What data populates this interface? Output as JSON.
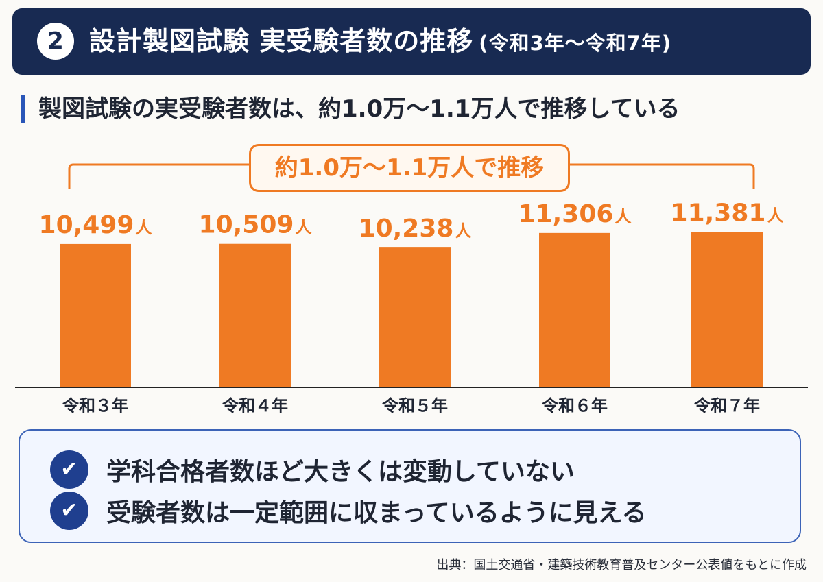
{
  "header": {
    "badge": "2",
    "title": "設計製図試験 実受験者数の推移",
    "subtitle": "(令和3年〜令和7年)",
    "background_color": "#182a52"
  },
  "subheading": "製図試験の実受験者数は、約1.0万〜1.1万人で推移している",
  "callout": "約1.0万〜1.1万人で推移",
  "chart_data": {
    "type": "bar",
    "categories": [
      "令和３年",
      "令和４年",
      "令和５年",
      "令和６年",
      "令和７年"
    ],
    "values": [
      10499,
      10509,
      10238,
      11306,
      11381
    ],
    "data_labels": [
      "10,499",
      "10,509",
      "10,238",
      "11,306",
      "11,381"
    ],
    "unit": "人",
    "bar_color": "#ef7a23",
    "ylim": [
      0,
      11600
    ],
    "grid": false
  },
  "summary": {
    "items": [
      {
        "icon": "check-icon",
        "text": "学科合格者数ほど大きくは変動していない"
      },
      {
        "icon": "check-icon",
        "text": "受験者数は一定範囲に収まっているように見える"
      }
    ]
  },
  "source": "出典：国土交通省・建築技術教育普及センター公表値をもとに作成"
}
